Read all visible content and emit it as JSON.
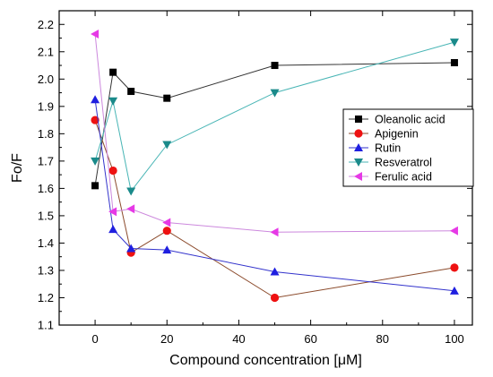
{
  "chart_data": {
    "type": "line",
    "title": "",
    "xlabel": "Compound concentration [μM]",
    "ylabel": "Fo/F",
    "xlim": [
      -10,
      105
    ],
    "ylim": [
      1.1,
      2.25
    ],
    "xticks": [
      0,
      20,
      40,
      60,
      80,
      100
    ],
    "yticks": [
      1.1,
      1.2,
      1.3,
      1.4,
      1.5,
      1.6,
      1.7,
      1.8,
      1.9,
      2.0,
      2.1,
      2.2
    ],
    "legend_position": "right",
    "grid": false,
    "series": [
      {
        "name": "Oleanolic acid",
        "marker": "square",
        "color": "#000000",
        "line_color": "#333333",
        "x": [
          0,
          5,
          10,
          20,
          50,
          100
        ],
        "y": [
          1.61,
          2.025,
          1.955,
          1.93,
          2.05,
          2.06
        ]
      },
      {
        "name": "Apigenin",
        "marker": "circle",
        "color": "#ee1111",
        "line_color": "#8b4a2b",
        "x": [
          0,
          5,
          10,
          20,
          50,
          100
        ],
        "y": [
          1.85,
          1.665,
          1.365,
          1.445,
          1.2,
          1.31
        ]
      },
      {
        "name": "Rutin",
        "marker": "triangle-up",
        "color": "#1f1fe0",
        "line_color": "#3333cc",
        "x": [
          0,
          5,
          10,
          20,
          50,
          100
        ],
        "y": [
          1.925,
          1.45,
          1.38,
          1.375,
          1.295,
          1.225
        ]
      },
      {
        "name": "Resveratrol",
        "marker": "triangle-down",
        "color": "#1a8a8a",
        "line_color": "#48b5b5",
        "x": [
          0,
          5,
          10,
          20,
          50,
          100
        ],
        "y": [
          1.7,
          1.92,
          1.59,
          1.76,
          1.95,
          2.135
        ]
      },
      {
        "name": "Ferulic acid",
        "marker": "triangle-left",
        "color": "#e639e6",
        "line_color": "#cc88dd",
        "x": [
          0,
          5,
          10,
          20,
          50,
          100
        ],
        "y": [
          2.165,
          1.515,
          1.525,
          1.475,
          1.44,
          1.445
        ]
      }
    ]
  }
}
